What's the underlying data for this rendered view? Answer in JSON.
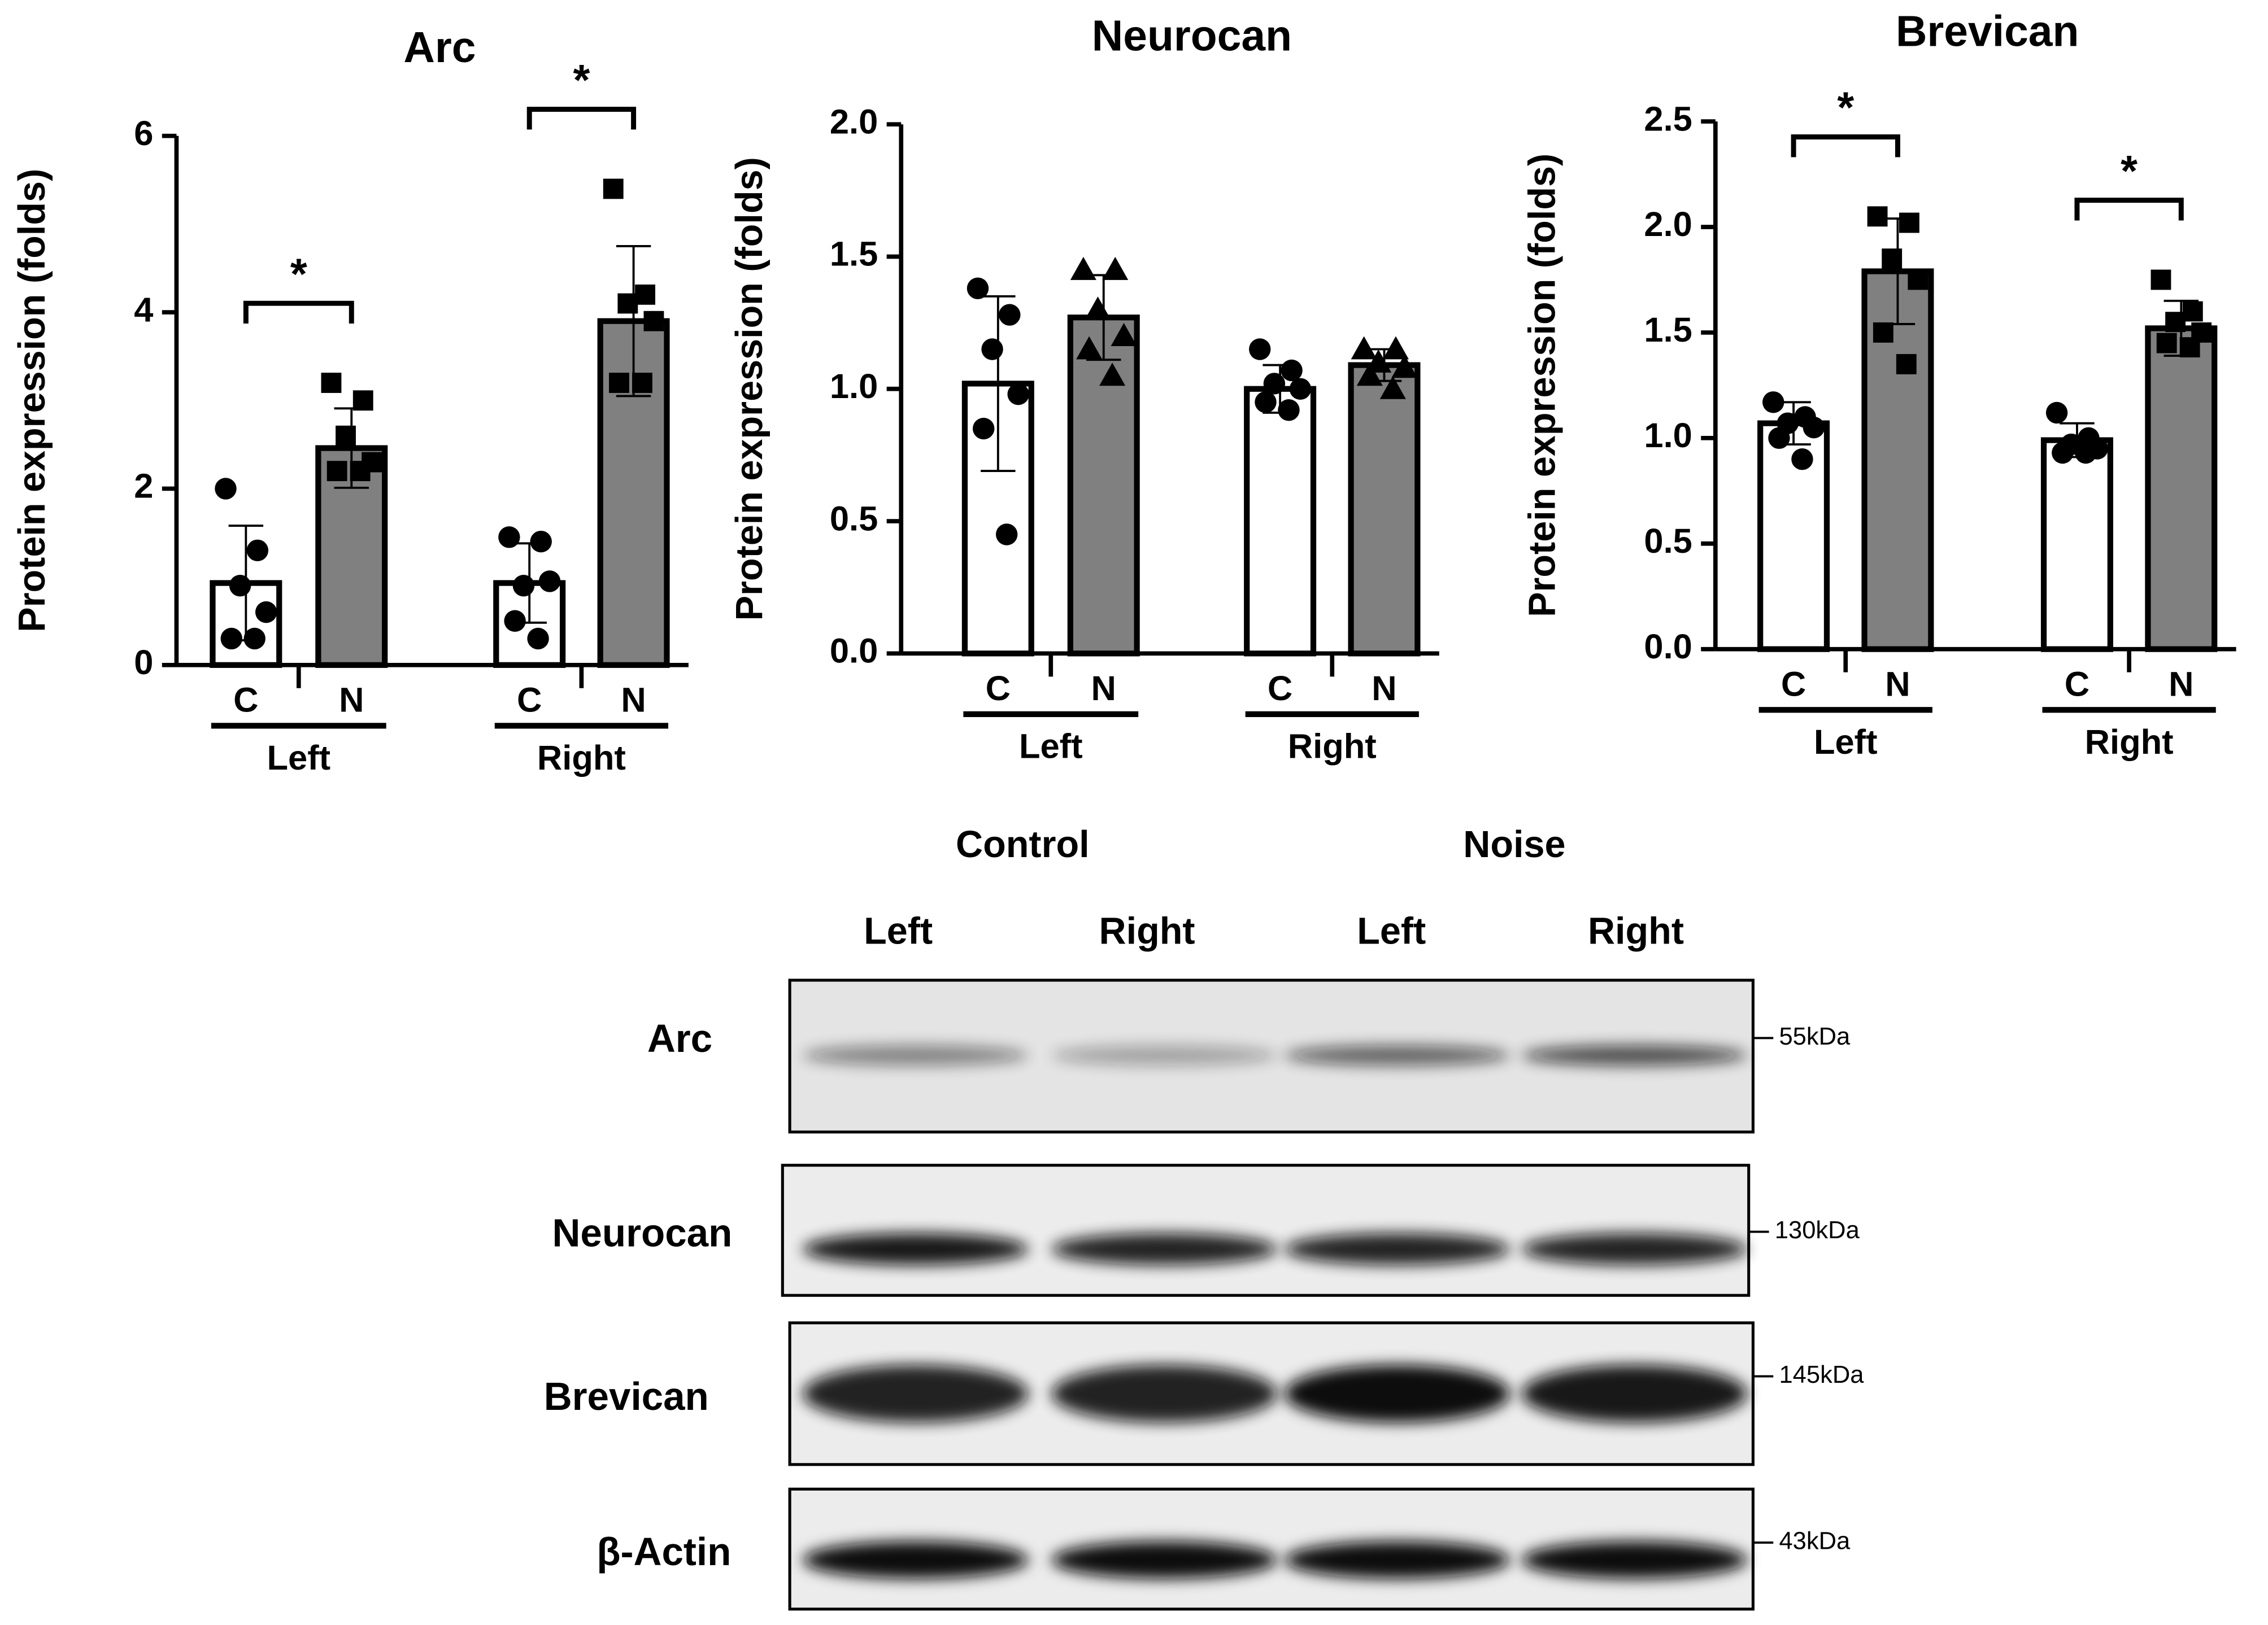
{
  "chart_data": [
    {
      "type": "bar",
      "title": "Arc",
      "y_label": "Protein expression (folds)",
      "categories": [
        "C",
        "N",
        "C",
        "N"
      ],
      "groups": [
        "Left",
        "Right"
      ],
      "colors": [
        "#ffffff",
        "#808080",
        "#ffffff",
        "#808080"
      ],
      "markers": [
        "circle",
        "square",
        "circle",
        "square"
      ],
      "values": [
        0.93,
        2.46,
        0.93,
        3.9
      ],
      "errors": [
        0.65,
        0.45,
        0.45,
        0.85
      ],
      "points": [
        [
          2.0,
          1.3,
          0.9,
          0.6,
          0.3,
          0.3
        ],
        [
          3.2,
          3.0,
          2.6,
          2.3,
          2.2,
          2.2
        ],
        [
          1.45,
          1.4,
          0.9,
          0.95,
          0.5,
          0.3
        ],
        [
          5.4,
          4.2,
          4.1,
          3.9,
          3.2,
          3.2
        ]
      ],
      "ylim": [
        0,
        6
      ],
      "yticks": [
        0,
        2,
        4,
        6
      ],
      "significance": [
        "*",
        "*"
      ]
    },
    {
      "type": "bar",
      "title": "Neurocan",
      "y_label": "Protein expression (folds)",
      "categories": [
        "C",
        "N",
        "C",
        "N"
      ],
      "groups": [
        "Left",
        "Right"
      ],
      "colors": [
        "#ffffff",
        "#808080",
        "#ffffff",
        "#808080"
      ],
      "markers": [
        "circle",
        "triangle",
        "circle",
        "triangle"
      ],
      "values": [
        1.02,
        1.27,
        1.0,
        1.09
      ],
      "errors": [
        0.33,
        0.16,
        0.09,
        0.06
      ],
      "points": [
        [
          1.38,
          1.28,
          1.15,
          0.98,
          0.85,
          0.45
        ],
        [
          1.45,
          1.45,
          1.3,
          1.2,
          1.15,
          1.05
        ],
        [
          1.15,
          1.07,
          1.02,
          1.0,
          0.95,
          0.92
        ],
        [
          1.15,
          1.15,
          1.1,
          1.08,
          1.05,
          1.0
        ]
      ],
      "ylim": [
        0,
        2
      ],
      "yticks": [
        {
          "value": 0,
          "label": "0.0"
        },
        0.5,
        {
          "value": 1,
          "label": "1.0"
        },
        1.5,
        {
          "value": 2,
          "label": "2.0"
        }
      ],
      "significance": []
    },
    {
      "type": "bar",
      "title": "Brevican",
      "y_label": "Protein expression (folds)",
      "categories": [
        "C",
        "N",
        "C",
        "N"
      ],
      "groups": [
        "Left",
        "Right"
      ],
      "colors": [
        "#ffffff",
        "#808080",
        "#ffffff",
        "#808080"
      ],
      "markers": [
        "circle",
        "square",
        "circle",
        "square"
      ],
      "values": [
        1.07,
        1.79,
        0.99,
        1.52
      ],
      "errors": [
        0.1,
        0.25,
        0.08,
        0.13
      ],
      "points": [
        [
          1.17,
          1.1,
          1.07,
          1.05,
          1.0,
          0.9
        ],
        [
          2.05,
          2.02,
          1.85,
          1.75,
          1.5,
          1.35
        ],
        [
          1.12,
          1.0,
          0.97,
          0.95,
          0.93,
          0.93
        ],
        [
          1.75,
          1.6,
          1.55,
          1.5,
          1.45,
          1.43
        ]
      ],
      "ylim": [
        0,
        2.5
      ],
      "yticks": [
        {
          "value": 0,
          "label": "0.0"
        },
        0.5,
        {
          "value": 1,
          "label": "1.0"
        },
        1.5,
        {
          "value": 2,
          "label": "2.0"
        },
        2.5
      ],
      "significance": [
        "*",
        "*"
      ]
    }
  ],
  "blot": {
    "conditions": [
      "Control",
      "Noise"
    ],
    "lanes": [
      "Left",
      "Right",
      "Left",
      "Right"
    ],
    "rows": [
      {
        "label": "Arc",
        "size": "55kDa"
      },
      {
        "label": "Neurocan",
        "size": "130kDa"
      },
      {
        "label": "Brevican",
        "size": "145kDa"
      },
      {
        "label": "β-Actin",
        "size": "43kDa"
      }
    ]
  }
}
